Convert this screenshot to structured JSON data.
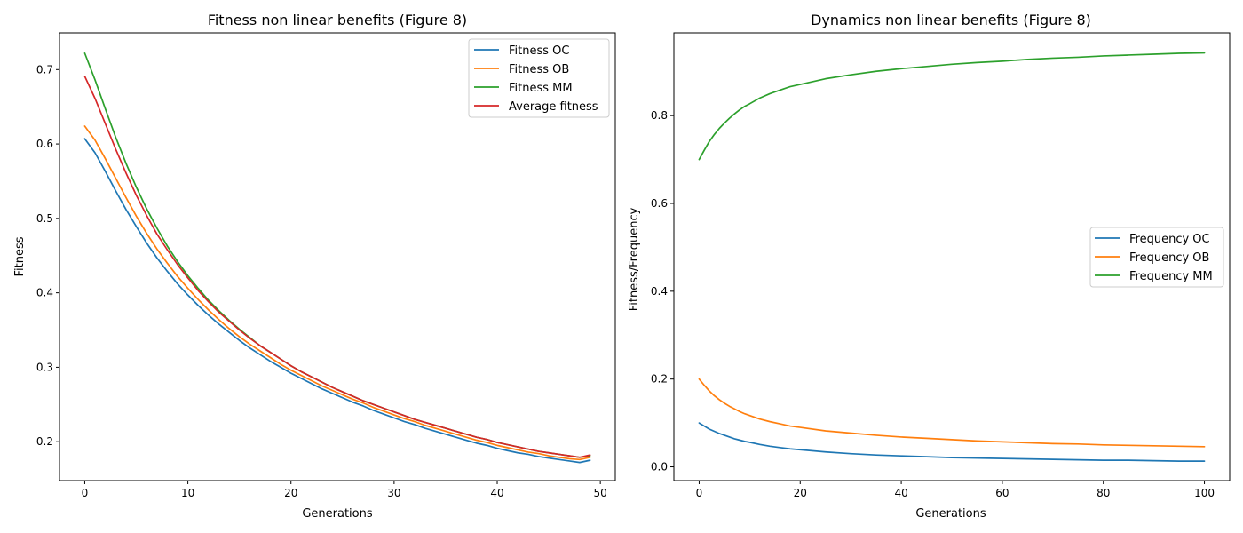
{
  "chart_data": [
    {
      "type": "line",
      "title": "Fitness non linear benefits (Figure 8)",
      "xlabel": "Generations",
      "ylabel": "Fitness",
      "xlim": [
        -2.45,
        51.45
      ],
      "ylim": [
        0.1477,
        0.7493
      ],
      "xticks": [
        0,
        10,
        20,
        30,
        40,
        50
      ],
      "yticks": [
        0.2,
        0.3,
        0.4,
        0.5,
        0.6,
        0.7
      ],
      "xtick_labels": [
        "0",
        "10",
        "20",
        "30",
        "40",
        "50"
      ],
      "ytick_labels": [
        "0.2",
        "0.3",
        "0.4",
        "0.5",
        "0.6",
        "0.7"
      ],
      "grid": false,
      "legend_position": "upper right",
      "x": [
        0,
        1,
        2,
        3,
        4,
        5,
        6,
        7,
        8,
        9,
        10,
        11,
        12,
        13,
        14,
        15,
        16,
        17,
        18,
        19,
        20,
        21,
        22,
        23,
        24,
        25,
        26,
        27,
        28,
        29,
        30,
        31,
        32,
        33,
        34,
        35,
        36,
        37,
        38,
        39,
        40,
        41,
        42,
        43,
        44,
        45,
        46,
        47,
        48,
        49
      ],
      "series": [
        {
          "name": "Fitness OC",
          "color": "#1f77b4",
          "values": [
            0.607,
            0.588,
            0.563,
            0.537,
            0.512,
            0.489,
            0.467,
            0.447,
            0.429,
            0.412,
            0.397,
            0.383,
            0.37,
            0.358,
            0.347,
            0.336,
            0.326,
            0.317,
            0.308,
            0.3,
            0.292,
            0.285,
            0.278,
            0.271,
            0.265,
            0.259,
            0.253,
            0.248,
            0.242,
            0.237,
            0.232,
            0.227,
            0.223,
            0.218,
            0.214,
            0.21,
            0.206,
            0.202,
            0.198,
            0.195,
            0.191,
            0.188,
            0.185,
            0.183,
            0.18,
            0.178,
            0.176,
            0.174,
            0.172,
            0.175
          ]
        },
        {
          "name": "Fitness OB",
          "color": "#ff7f0e",
          "values": [
            0.624,
            0.605,
            0.58,
            0.554,
            0.528,
            0.503,
            0.48,
            0.459,
            0.44,
            0.422,
            0.406,
            0.391,
            0.377,
            0.364,
            0.352,
            0.341,
            0.331,
            0.322,
            0.313,
            0.304,
            0.296,
            0.289,
            0.282,
            0.275,
            0.269,
            0.263,
            0.257,
            0.252,
            0.246,
            0.241,
            0.236,
            0.231,
            0.227,
            0.222,
            0.218,
            0.214,
            0.21,
            0.206,
            0.202,
            0.199,
            0.195,
            0.192,
            0.189,
            0.186,
            0.184,
            0.181,
            0.179,
            0.177,
            0.176,
            0.179
          ]
        },
        {
          "name": "Fitness MM",
          "color": "#2ca02c",
          "values": [
            0.722,
            0.686,
            0.647,
            0.609,
            0.574,
            0.542,
            0.513,
            0.487,
            0.463,
            0.442,
            0.423,
            0.406,
            0.39,
            0.376,
            0.363,
            0.351,
            0.34,
            0.329,
            0.32,
            0.311,
            0.302,
            0.294,
            0.287,
            0.28,
            0.273,
            0.267,
            0.261,
            0.255,
            0.25,
            0.245,
            0.24,
            0.235,
            0.23,
            0.226,
            0.222,
            0.218,
            0.214,
            0.21,
            0.206,
            0.203,
            0.199,
            0.196,
            0.193,
            0.19,
            0.187,
            0.185,
            0.183,
            0.181,
            0.179,
            0.181
          ]
        },
        {
          "name": "Average fitness",
          "color": "#d62728",
          "values": [
            0.691,
            0.661,
            0.627,
            0.593,
            0.561,
            0.531,
            0.504,
            0.479,
            0.458,
            0.438,
            0.42,
            0.403,
            0.388,
            0.374,
            0.362,
            0.35,
            0.339,
            0.329,
            0.32,
            0.311,
            0.302,
            0.294,
            0.287,
            0.28,
            0.273,
            0.267,
            0.261,
            0.255,
            0.25,
            0.245,
            0.24,
            0.235,
            0.23,
            0.226,
            0.222,
            0.218,
            0.214,
            0.21,
            0.206,
            0.203,
            0.199,
            0.196,
            0.193,
            0.19,
            0.187,
            0.185,
            0.183,
            0.181,
            0.179,
            0.182
          ]
        }
      ]
    },
    {
      "type": "line",
      "title": "Dynamics non linear benefits (Figure 8)",
      "xlabel": "Generations",
      "ylabel": "Fitness/Frequency",
      "xlim": [
        -5,
        105
      ],
      "ylim": [
        -0.0313,
        0.9885
      ],
      "xticks": [
        0,
        20,
        40,
        60,
        80,
        100
      ],
      "yticks": [
        0.0,
        0.2,
        0.4,
        0.6,
        0.8
      ],
      "xtick_labels": [
        "0",
        "20",
        "40",
        "60",
        "80",
        "100"
      ],
      "ytick_labels": [
        "0.0",
        "0.2",
        "0.4",
        "0.6",
        "0.8"
      ],
      "grid": false,
      "legend_position": "center right",
      "x": [
        0,
        1,
        2,
        3,
        4,
        5,
        6,
        7,
        8,
        9,
        10,
        12,
        14,
        16,
        18,
        20,
        25,
        30,
        35,
        40,
        45,
        50,
        55,
        60,
        65,
        70,
        75,
        80,
        85,
        90,
        95,
        100
      ],
      "series": [
        {
          "name": "Frequency OC",
          "color": "#1f77b4",
          "values": [
            0.1,
            0.093,
            0.086,
            0.081,
            0.076,
            0.072,
            0.068,
            0.064,
            0.061,
            0.058,
            0.056,
            0.051,
            0.047,
            0.044,
            0.041,
            0.039,
            0.034,
            0.03,
            0.027,
            0.025,
            0.023,
            0.021,
            0.02,
            0.019,
            0.018,
            0.017,
            0.016,
            0.015,
            0.015,
            0.014,
            0.013,
            0.013
          ]
        },
        {
          "name": "Frequency OB",
          "color": "#ff7f0e",
          "values": [
            0.2,
            0.186,
            0.173,
            0.162,
            0.153,
            0.145,
            0.138,
            0.132,
            0.126,
            0.121,
            0.117,
            0.109,
            0.103,
            0.098,
            0.093,
            0.09,
            0.082,
            0.077,
            0.072,
            0.068,
            0.065,
            0.062,
            0.059,
            0.057,
            0.055,
            0.053,
            0.052,
            0.05,
            0.049,
            0.048,
            0.047,
            0.046
          ]
        },
        {
          "name": "Frequency MM",
          "color": "#2ca02c",
          "values": [
            0.7,
            0.721,
            0.741,
            0.757,
            0.771,
            0.783,
            0.794,
            0.804,
            0.813,
            0.821,
            0.827,
            0.84,
            0.85,
            0.858,
            0.866,
            0.871,
            0.884,
            0.893,
            0.901,
            0.907,
            0.912,
            0.917,
            0.921,
            0.924,
            0.928,
            0.931,
            0.933,
            0.936,
            0.938,
            0.94,
            0.942,
            0.943
          ]
        }
      ]
    }
  ]
}
